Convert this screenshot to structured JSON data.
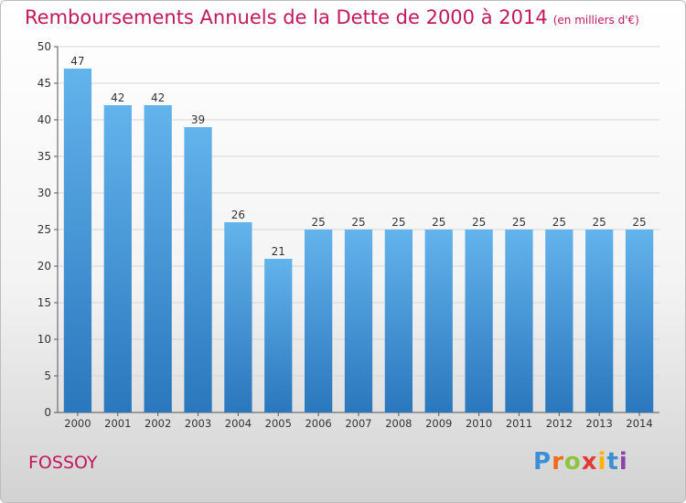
{
  "header": {
    "title": "Remboursements Annuels de la Dette de 2000 à 2014",
    "unit": "(en milliers d'€)"
  },
  "footer": {
    "commune": "FOSSOY",
    "logo_text": "Proxiti"
  },
  "colors": {
    "title": "#c2185b",
    "bar_top": "#63b3ec",
    "bar_bottom": "#2a77bd"
  },
  "chart_data": {
    "type": "bar",
    "title": "Remboursements Annuels de la Dette de 2000 à 2014",
    "xlabel": "",
    "ylabel": "",
    "categories": [
      "2000",
      "2001",
      "2002",
      "2003",
      "2004",
      "2005",
      "2006",
      "2007",
      "2008",
      "2009",
      "2010",
      "2011",
      "2012",
      "2013",
      "2014"
    ],
    "values": [
      47,
      42,
      42,
      39,
      26,
      21,
      25,
      25,
      25,
      25,
      25,
      25,
      25,
      25,
      25
    ],
    "ylim": [
      0,
      50
    ],
    "yticks": [
      0,
      5,
      10,
      15,
      20,
      25,
      30,
      35,
      40,
      45,
      50
    ],
    "grid": true,
    "data_labels": true
  }
}
